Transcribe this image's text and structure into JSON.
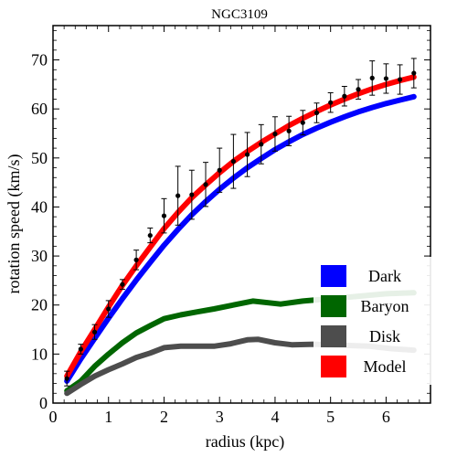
{
  "chart_data": {
    "type": "line",
    "title": "NGC3109",
    "xlabel": "radius (kpc)",
    "ylabel": "rotation speed (km/s)",
    "xlim": [
      0,
      6.8
    ],
    "ylim": [
      0,
      77
    ],
    "xticks": [
      0,
      1,
      2,
      3,
      4,
      5,
      6
    ],
    "yticks": [
      0,
      10,
      20,
      30,
      40,
      50,
      60,
      70
    ],
    "grid": false,
    "legend_position": "bottom-right",
    "series": [
      {
        "name": "Dark",
        "color": "#0000ff",
        "x": [
          0.25,
          0.5,
          0.75,
          1.0,
          1.25,
          1.5,
          1.75,
          2.0,
          2.25,
          2.5,
          2.75,
          3.0,
          3.25,
          3.5,
          3.75,
          4.0,
          4.25,
          4.5,
          4.75,
          5.0,
          5.25,
          5.5,
          5.75,
          6.0,
          6.25,
          6.5
        ],
        "y": [
          4.5,
          9.0,
          13.2,
          17.3,
          21.3,
          25.1,
          28.7,
          32.2,
          35.4,
          38.4,
          41.1,
          43.6,
          45.9,
          48.0,
          49.9,
          51.7,
          53.3,
          54.8,
          56.1,
          57.3,
          58.4,
          59.4,
          60.3,
          61.1,
          61.8,
          62.5
        ]
      },
      {
        "name": "Baryon",
        "color": "#006600",
        "x": [
          0.25,
          0.5,
          0.75,
          1.0,
          1.25,
          1.5,
          1.75,
          2.0,
          2.3,
          2.6,
          2.9,
          3.2,
          3.6,
          4.1,
          4.5,
          5.0,
          5.5,
          6.0,
          6.5
        ],
        "y": [
          2.5,
          4.5,
          7.5,
          10.0,
          12.3,
          14.3,
          15.8,
          17.2,
          18.0,
          18.6,
          19.2,
          19.9,
          20.8,
          20.2,
          20.8,
          21.3,
          21.8,
          22.3,
          22.5
        ]
      },
      {
        "name": "Disk",
        "color": "#4d4d4d",
        "x": [
          0.25,
          0.5,
          0.75,
          1.0,
          1.25,
          1.5,
          1.75,
          2.0,
          2.3,
          2.6,
          2.9,
          3.2,
          3.5,
          3.7,
          4.0,
          4.3,
          4.7,
          5.2,
          5.7,
          6.1,
          6.5
        ],
        "y": [
          2.0,
          3.8,
          5.5,
          6.8,
          8.0,
          9.3,
          10.2,
          11.3,
          11.6,
          11.6,
          11.6,
          12.1,
          12.9,
          13.0,
          12.3,
          11.9,
          12.0,
          11.8,
          11.6,
          11.1,
          10.8
        ]
      },
      {
        "name": "Model",
        "color": "#ff0000",
        "x": [
          0.25,
          0.5,
          0.75,
          1.0,
          1.25,
          1.5,
          1.75,
          2.0,
          2.25,
          2.5,
          2.75,
          3.0,
          3.25,
          3.5,
          3.75,
          4.0,
          4.25,
          4.5,
          4.75,
          5.0,
          5.25,
          5.5,
          5.75,
          6.0,
          6.25,
          6.5
        ],
        "y": [
          5.5,
          10.5,
          15.0,
          19.6,
          24.0,
          28.0,
          31.8,
          35.6,
          38.9,
          41.9,
          44.5,
          47.0,
          49.3,
          51.3,
          53.2,
          54.9,
          56.6,
          58.1,
          59.5,
          60.8,
          62.0,
          63.1,
          64.1,
          65.0,
          65.8,
          66.5
        ]
      }
    ],
    "observations": {
      "name": "Data",
      "color": "#000000",
      "x": [
        0.25,
        0.5,
        0.75,
        1.0,
        1.25,
        1.5,
        1.75,
        2.0,
        2.25,
        2.5,
        2.75,
        3.0,
        3.25,
        3.5,
        3.75,
        4.0,
        4.25,
        4.5,
        4.75,
        5.0,
        5.25,
        5.5,
        5.75,
        6.0,
        6.25,
        6.5
      ],
      "y": [
        5.0,
        11.0,
        14.5,
        19.2,
        24.2,
        29.2,
        34.2,
        38.2,
        42.3,
        42.5,
        44.6,
        47.5,
        49.3,
        50.7,
        52.8,
        54.9,
        55.5,
        57.2,
        59.2,
        61.3,
        62.6,
        64.0,
        66.3,
        66.2,
        66.0,
        67.3
      ],
      "err": [
        1.5,
        1.0,
        1.5,
        1.7,
        1.0,
        2.0,
        1.5,
        3.5,
        6.0,
        5.0,
        4.5,
        4.5,
        5.5,
        4.5,
        4.0,
        3.5,
        3.0,
        2.5,
        2.0,
        2.0,
        2.0,
        2.0,
        3.5,
        3.0,
        3.0,
        3.0
      ]
    }
  }
}
